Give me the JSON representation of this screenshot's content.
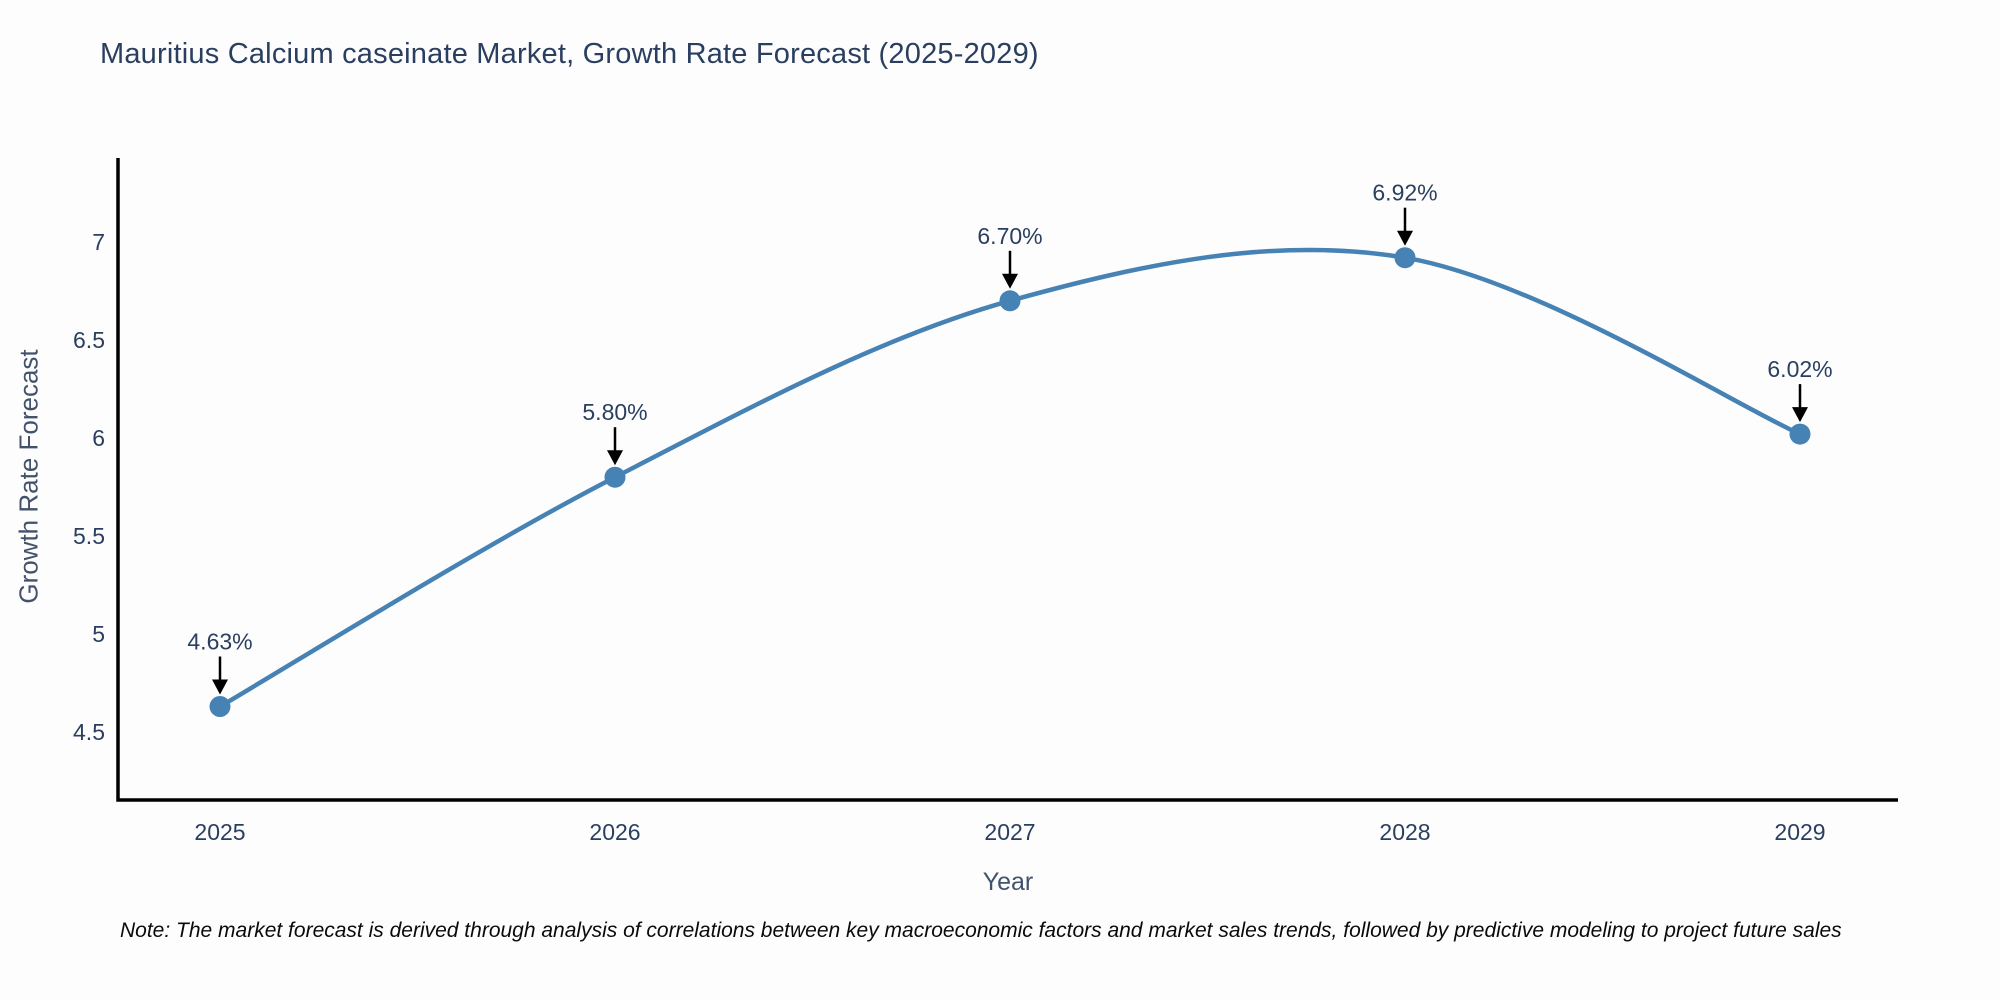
{
  "title": "Mauritius Calcium caseinate Market, Growth Rate Forecast (2025-2029)",
  "note": "Note: The market forecast is derived through analysis of correlations between key macroeconomic factors and market sales trends, followed by predictive modeling to project future sales",
  "chart_data": {
    "type": "line",
    "title": "Mauritius Calcium caseinate Market, Growth Rate Forecast (2025-2029)",
    "x": [
      "2025",
      "2026",
      "2027",
      "2028",
      "2029"
    ],
    "series": [
      {
        "name": "Growth Rate Forecast",
        "values": [
          4.63,
          5.8,
          6.7,
          6.92,
          6.02
        ]
      }
    ],
    "point_labels": [
      "4.63%",
      "5.80%",
      "6.70%",
      "6.92%",
      "6.02%"
    ],
    "xlabel": "Year",
    "ylabel": "Growth Rate Forecast",
    "yticks": [
      "4.5",
      "5",
      "5.5",
      "6",
      "6.5",
      "7"
    ],
    "ylim": [
      4.15,
      7.43
    ],
    "line_shape": "spline",
    "grid": false,
    "legend": "none",
    "colors": {
      "line": "#4682b4",
      "marker": "#4682b4",
      "axis": "#000000",
      "text": "#2a3f5f",
      "annotation": "#2a3f5f",
      "arrow": "#000000"
    }
  }
}
